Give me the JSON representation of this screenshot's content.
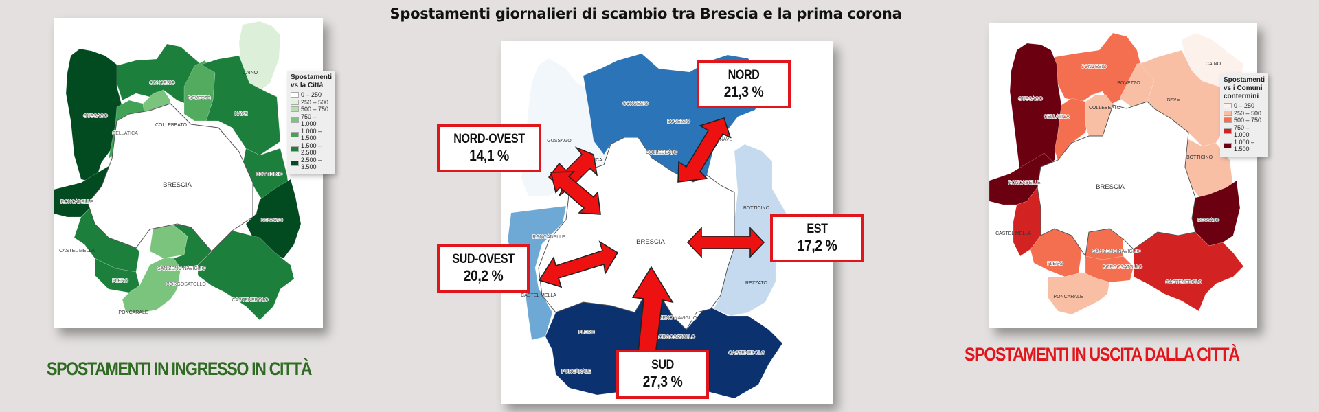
{
  "title": "Spostamenti giornalieri di scambio tra Brescia e la prima corona",
  "city": "BRESCIA",
  "municipalities": [
    "CAINO",
    "CONCESIO",
    "BOVEZZO",
    "NAVE",
    "GUSSAGO",
    "CELLATICA",
    "COLLEBEATO",
    "BOTTICINO",
    "RONCADELLE",
    "REZZATO",
    "CASTEL MELLA",
    "FLERO",
    "SAN ZENO NAVIGLIO",
    "BORGOSATOLLO",
    "CASTENEDOLO",
    "PONCARALE"
  ],
  "left_map": {
    "caption": "SPOSTAMENTI IN INGRESSO IN CITTÀ",
    "legend": {
      "title_line1": "Spostamenti",
      "title_line2": "vs la Città",
      "classes": [
        {
          "label": "0 – 250",
          "color": "#ffffff"
        },
        {
          "label": "250 – 500",
          "color": "#dff2da"
        },
        {
          "label": "500 – 750",
          "color": "#b7e0b0"
        },
        {
          "label": "750 – 1.000",
          "color": "#7bc47e"
        },
        {
          "label": "1.000 – 1.500",
          "color": "#42a356"
        },
        {
          "label": "1.500 – 2.500",
          "color": "#1d7f3c"
        },
        {
          "label": "2.500 – 3.500",
          "color": "#024a1f"
        }
      ]
    },
    "colors": {
      "CAINO": "#dcefd8",
      "CONCESIO": "#1d7f3c",
      "BOVEZZO": "#52ab5f",
      "NAVE": "#1d7f3c",
      "GUSSAGO": "#024a1f",
      "CELLATICA": "#42a356",
      "COLLEBEATO": "#7bc47e",
      "BOTTICINO": "#1d7f3c",
      "RONCADELLE": "#024a1f",
      "REZZATO": "#024a1f",
      "CASTEL MELLA": "#1d7f3c",
      "FLERO": "#1d7f3c",
      "SAN ZENO NAVIGLIO": "#7bc47e",
      "BORGOSATOLLO": "#1d7f3c",
      "CASTENEDOLO": "#1d7f3c",
      "PONCARALE": "#7bc47e"
    }
  },
  "center_map": {
    "directions": [
      {
        "name": "NORD",
        "value": "21,3 %"
      },
      {
        "name": "NORD-OVEST",
        "value": "14,1 %"
      },
      {
        "name": "EST",
        "value": "17,2 %"
      },
      {
        "name": "SUD-OVEST",
        "value": "20,2 %"
      },
      {
        "name": "SUD",
        "value": "27,3 %"
      }
    ],
    "colors": {
      "NORD": "#2c74b8",
      "NORD-OVEST": "#f2f7fc",
      "EST": "#c5daee",
      "SUD-OVEST": "#6ea9d6",
      "SUD": "#0b316f"
    },
    "arrow_color": "#ee1111"
  },
  "right_map": {
    "caption": "SPOSTAMENTI IN USCITA DALLA CITTÀ",
    "legend": {
      "title_line1": "Spostamenti",
      "title_line2": "vs i Comuni",
      "title_line3": "contermini",
      "classes": [
        {
          "label": "0 – 250",
          "color": "#fdf1ec"
        },
        {
          "label": "250 – 500",
          "color": "#f9bfa5"
        },
        {
          "label": "500 – 750",
          "color": "#f46f50"
        },
        {
          "label": "750 – 1.000",
          "color": "#d32222"
        },
        {
          "label": "1.000 – 1.500",
          "color": "#6a0010"
        }
      ]
    },
    "colors": {
      "CAINO": "#fdf1ec",
      "CONCESIO": "#f46f50",
      "BOVEZZO": "#f9bfa5",
      "NAVE": "#f9bfa5",
      "GUSSAGO": "#6a0010",
      "CELLATICA": "#f46f50",
      "COLLEBEATO": "#f9bfa5",
      "BOTTICINO": "#f9bfa5",
      "RONCADELLE": "#6a0010",
      "REZZATO": "#6a0010",
      "CASTEL MELLA": "#d32222",
      "FLERO": "#f46f50",
      "SAN ZENO NAVIGLIO": "#f46f50",
      "BORGOSATOLLO": "#f46f50",
      "CASTENEDOLO": "#d32222",
      "PONCARALE": "#f9bfa5"
    }
  },
  "chart_data": [
    {
      "type": "choropleth",
      "title": "Spostamenti vs la Città",
      "caption": "SPOSTAMENTI IN INGRESSO IN CITTÀ",
      "classes": [
        "0 – 250",
        "250 – 500",
        "500 – 750",
        "750 – 1.000",
        "1.000 – 1.500",
        "1.500 – 2.500",
        "2.500 – 3.500"
      ],
      "values": {
        "CAINO": "250 – 500",
        "CONCESIO": "1.500 – 2.500",
        "BOVEZZO": "1.000 – 1.500",
        "NAVE": "1.500 – 2.500",
        "GUSSAGO": "2.500 – 3.500",
        "CELLATICA": "1.000 – 1.500",
        "COLLEBEATO": "750 – 1.000",
        "BOTTICINO": "1.500 – 2.500",
        "RONCADELLE": "2.500 – 3.500",
        "REZZATO": "2.500 – 3.500",
        "CASTEL MELLA": "1.500 – 2.500",
        "FLERO": "1.500 – 2.500",
        "SAN ZENO NAVIGLIO": "750 – 1.000",
        "BORGOSATOLLO": "1.500 – 2.500",
        "CASTENEDOLO": "1.500 – 2.500",
        "PONCARALE": "750 – 1.000"
      }
    },
    {
      "type": "table",
      "title": "Spostamenti giornalieri di scambio tra Brescia e la prima corona",
      "categories": [
        "NORD",
        "NORD-OVEST",
        "EST",
        "SUD-OVEST",
        "SUD"
      ],
      "values": [
        21.3,
        14.1,
        17.2,
        20.2,
        27.3
      ],
      "unit": "%"
    },
    {
      "type": "choropleth",
      "title": "Spostamenti vs i Comuni contermini",
      "caption": "SPOSTAMENTI IN USCITA DALLA CITTÀ",
      "classes": [
        "0 – 250",
        "250 – 500",
        "500 – 750",
        "750 – 1.000",
        "1.000 – 1.500"
      ],
      "values": {
        "CAINO": "0 – 250",
        "CONCESIO": "500 – 750",
        "BOVEZZO": "250 – 500",
        "NAVE": "250 – 500",
        "GUSSAGO": "1.000 – 1.500",
        "CELLATICA": "500 – 750",
        "COLLEBEATO": "250 – 500",
        "BOTTICINO": "250 – 500",
        "RONCADELLE": "1.000 – 1.500",
        "REZZATO": "1.000 – 1.500",
        "CASTEL MELLA": "750 – 1.000",
        "FLERO": "500 – 750",
        "SAN ZENO NAVIGLIO": "500 – 750",
        "BORGOSATOLLO": "500 – 750",
        "CASTENEDOLO": "750 – 1.000",
        "PONCARALE": "250 – 500"
      }
    }
  ]
}
